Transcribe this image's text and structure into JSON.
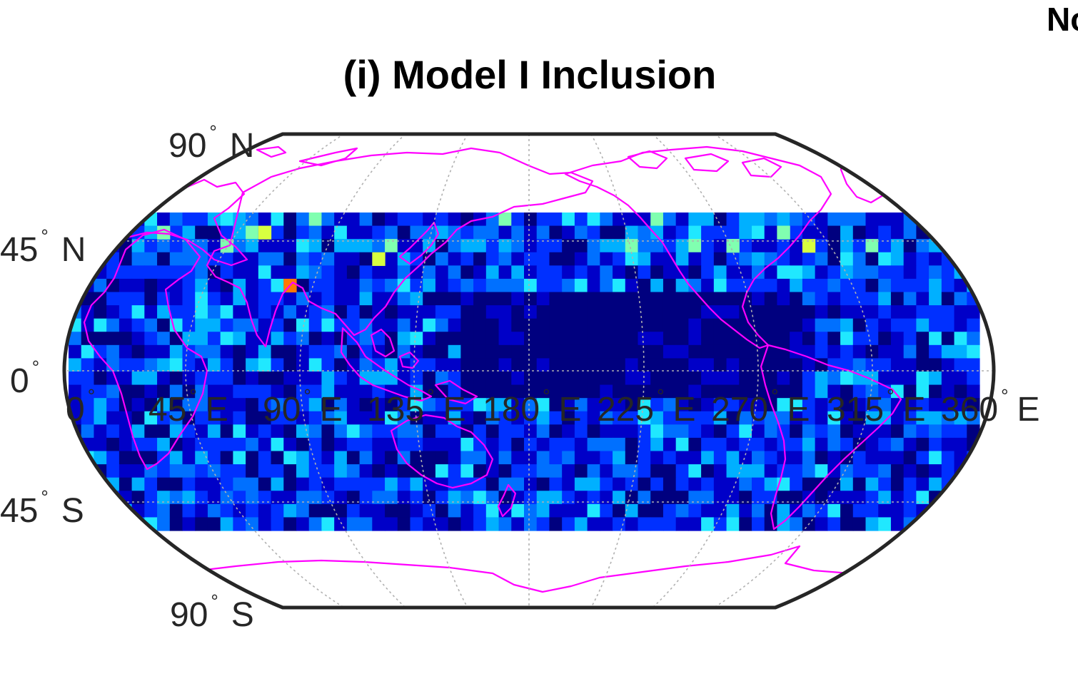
{
  "corner_label": "No",
  "title": "(i) Model I Inclusion",
  "colors": {
    "frame": "#262626",
    "grid": "#b0b0b0",
    "coastline": "#ff00ff",
    "colormap": [
      "#00007f",
      "#0000c8",
      "#0030ff",
      "#0070ff",
      "#00b0ff",
      "#20e8ff",
      "#80ffb0",
      "#d8ff40",
      "#ff7a00"
    ]
  },
  "lat_labels": [
    {
      "value": "90",
      "hemi": "N"
    },
    {
      "value": "45",
      "hemi": "N"
    },
    {
      "value": "0",
      "hemi": ""
    },
    {
      "value": "45",
      "hemi": "S"
    },
    {
      "value": "90",
      "hemi": "S"
    }
  ],
  "lon_labels": [
    {
      "value": "0",
      "hemi": ""
    },
    {
      "value": "45",
      "hemi": "E"
    },
    {
      "value": "90",
      "hemi": "E"
    },
    {
      "value": "135",
      "hemi": "E"
    },
    {
      "value": "180",
      "hemi": "E"
    },
    {
      "value": "225",
      "hemi": "E"
    },
    {
      "value": "270",
      "hemi": "E"
    },
    {
      "value": "315",
      "hemi": "E"
    },
    {
      "value": "360",
      "hemi": "E"
    }
  ],
  "map": {
    "projection": "Robinson",
    "lon_range": [
      0,
      360
    ],
    "lat_range": [
      -90,
      90
    ],
    "data_lat_range": [
      -60,
      60
    ],
    "grid_spacing_deg": 10
  }
}
